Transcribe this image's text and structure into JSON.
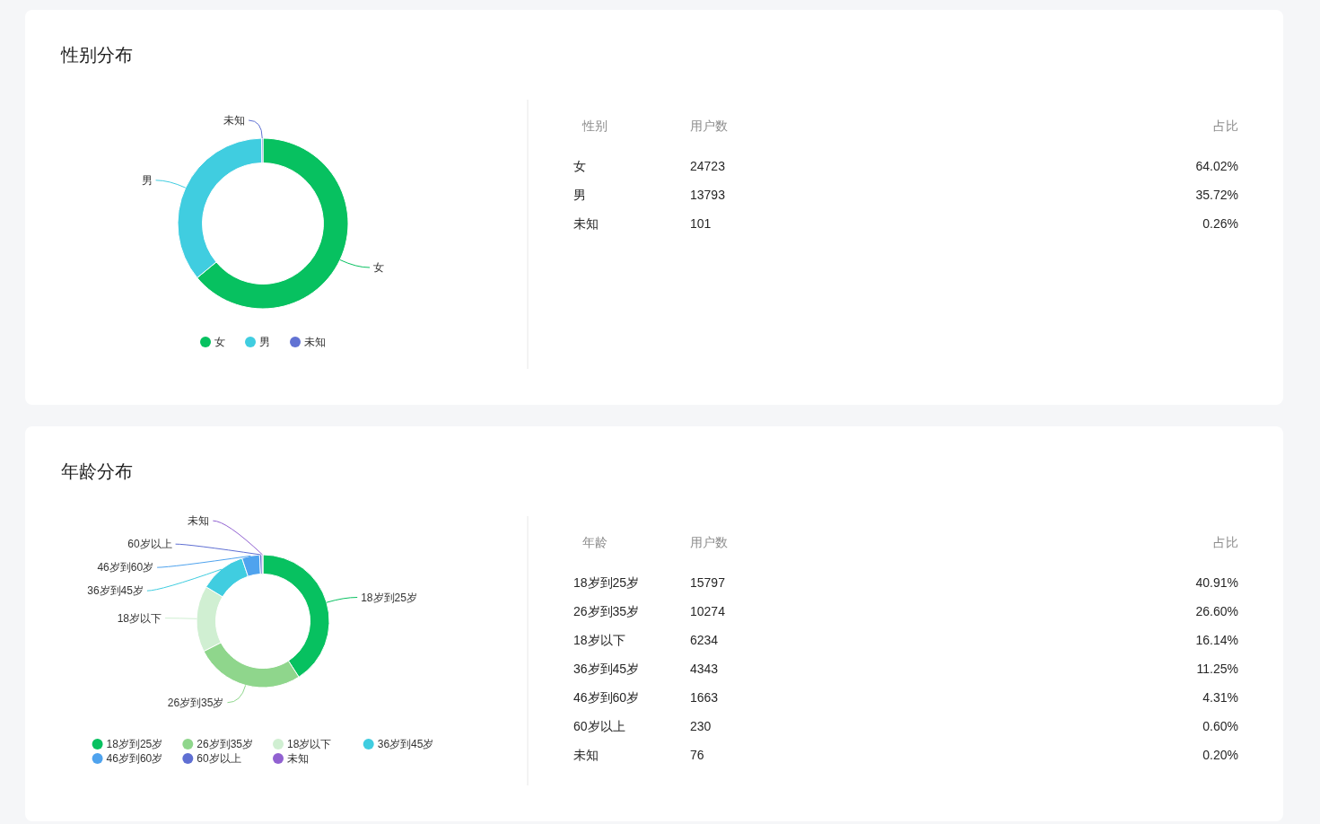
{
  "chart_data": [
    {
      "type": "donut",
      "title": "性别分布",
      "categories": [
        "女",
        "男",
        "未知"
      ],
      "values": [
        64.02,
        35.72,
        0.26
      ],
      "colors": [
        "#07c160",
        "#40cde0",
        "#6172d3"
      ],
      "legend": "bottom",
      "annotations": [
        "性别",
        "用户数",
        "占比",
        "24723",
        "64.02%",
        "13793",
        "35.72%",
        "101",
        "0.26%"
      ]
    },
    {
      "type": "donut",
      "title": "年龄分布",
      "categories": [
        "18岁到25岁",
        "26岁到35岁",
        "18岁以下",
        "36岁到45岁",
        "46岁到60岁",
        "60岁以上",
        "未知"
      ],
      "values": [
        40.91,
        26.6,
        16.14,
        11.25,
        4.31,
        0.6,
        0.2
      ],
      "colors": [
        "#07c160",
        "#8fd68c",
        "#d0efd2",
        "#40cde0",
        "#4fa3ee",
        "#5f6fd3",
        "#9161d1"
      ],
      "legend": "bottom",
      "annotations": [
        "年龄",
        "用户数",
        "占比",
        "15797",
        "40.91%",
        "10274",
        "26.60%",
        "6234",
        "16.14%",
        "4343",
        "11.25%",
        "1663",
        "4.31%",
        "230",
        "0.60%",
        "76",
        "0.20%"
      ]
    }
  ]
}
